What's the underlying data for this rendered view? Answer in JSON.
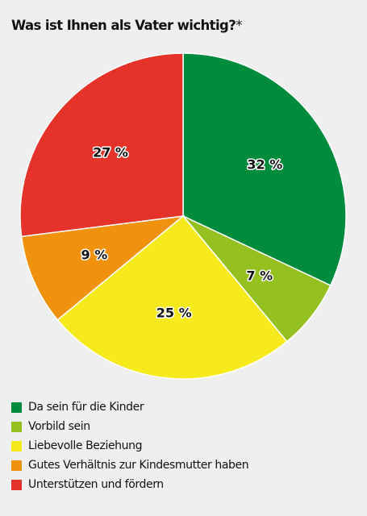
{
  "header": {
    "title": "Was ist Ihnen als Vater wichtig?",
    "footnote_mark": "*"
  },
  "chart_data": {
    "type": "pie",
    "title": "Was ist Ihnen als Vater wichtig?*",
    "start": "12 o'clock, clockwise",
    "legend_position": "bottom",
    "slices": [
      {
        "name": "Da sein für die Kinder",
        "value": 32,
        "label": "32 %",
        "color": "#008c3c"
      },
      {
        "name": "Vorbild sein",
        "value": 7,
        "label": "7 %",
        "color": "#94c11f"
      },
      {
        "name": "Liebevolle Beziehung",
        "value": 25,
        "label": "25 %",
        "color": "#f7ea1c"
      },
      {
        "name": "Gutes Verhältnis zur Kindesmutter haben",
        "value": 9,
        "label": "9 %",
        "color": "#f0920d"
      },
      {
        "name": "Unterstützen und fördern",
        "value": 27,
        "label": "27 %",
        "color": "#e5332a"
      }
    ]
  },
  "legend": {
    "items": [
      {
        "label": "Da sein für die Kinder",
        "color": "#008c3c"
      },
      {
        "label": "Vorbild sein",
        "color": "#94c11f"
      },
      {
        "label": "Liebevolle Beziehung",
        "color": "#f7ea1c"
      },
      {
        "label": "Gutes Verhältnis zur Kindesmutter haben",
        "color": "#f0920d"
      },
      {
        "label": "Unterstützen und fördern",
        "color": "#e5332a"
      }
    ]
  }
}
